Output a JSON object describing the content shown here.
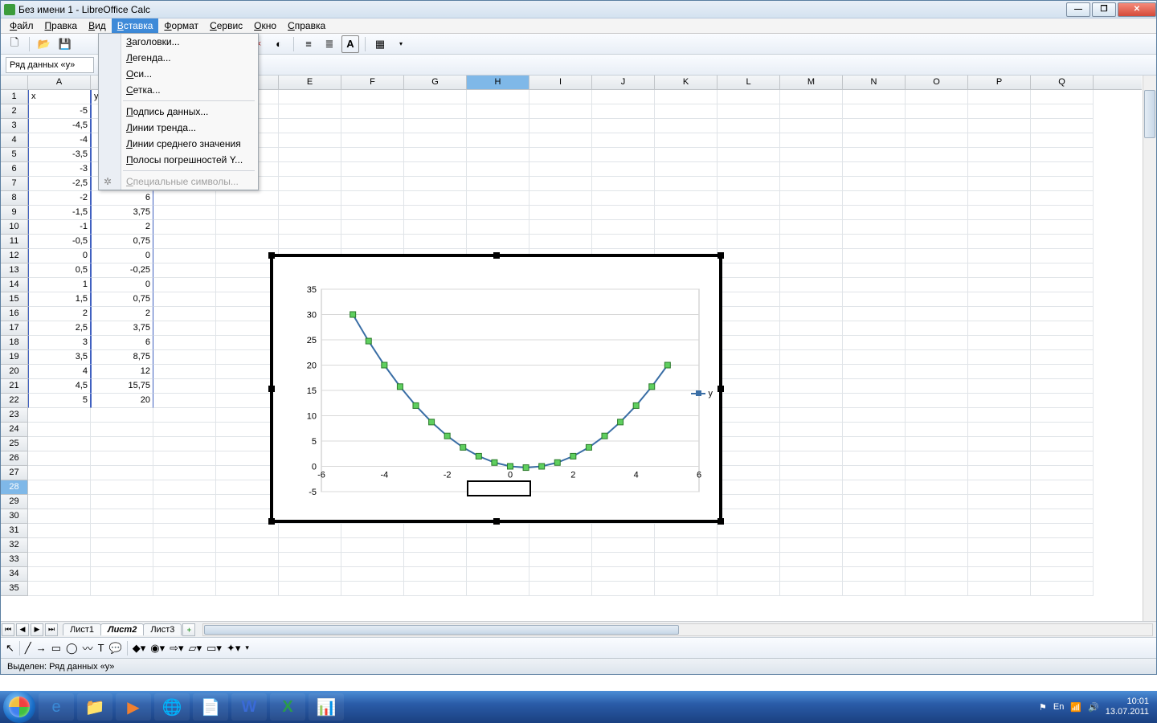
{
  "titlebar": {
    "title": "Без имени 1 - LibreOffice Calc"
  },
  "menubar": {
    "items": [
      "Файл",
      "Правка",
      "Вид",
      "Вставка",
      "Формат",
      "Сервис",
      "Окно",
      "Справка"
    ],
    "activeIndex": 3
  },
  "dropdown": {
    "sections": [
      [
        "Заголовки...",
        "Легенда...",
        "Оси...",
        "Сетка..."
      ],
      [
        "Подпись данных...",
        "Линии тренда...",
        "Линии среднего значения",
        "Полосы погрешностей Y..."
      ],
      [
        {
          "label": "Специальные символы...",
          "disabled": true
        }
      ]
    ]
  },
  "namebox": {
    "value": "Ряд данных «y»"
  },
  "columns": [
    "A",
    "B",
    "C",
    "D",
    "E",
    "F",
    "G",
    "H",
    "I",
    "J",
    "K",
    "L",
    "M",
    "N",
    "O",
    "P",
    "Q"
  ],
  "selectedCol": "H",
  "selectedRow": 28,
  "rowCount": 35,
  "table": {
    "headers": [
      "x",
      "y"
    ],
    "rows": [
      [
        "-5",
        "30"
      ],
      [
        "-4,5",
        ""
      ],
      [
        "-4",
        ""
      ],
      [
        "-3,5",
        ""
      ],
      [
        "-3",
        ""
      ],
      [
        "-2,5",
        "8,75"
      ],
      [
        "-2",
        "6"
      ],
      [
        "-1,5",
        "3,75"
      ],
      [
        "-1",
        "2"
      ],
      [
        "-0,5",
        "0,75"
      ],
      [
        "0",
        "0"
      ],
      [
        "0,5",
        "-0,25"
      ],
      [
        "1",
        "0"
      ],
      [
        "1,5",
        "0,75"
      ],
      [
        "2",
        "2"
      ],
      [
        "2,5",
        "3,75"
      ],
      [
        "3",
        "6"
      ],
      [
        "3,5",
        "8,75"
      ],
      [
        "4",
        "12"
      ],
      [
        "4,5",
        "15,75"
      ],
      [
        "5",
        "20"
      ]
    ]
  },
  "chart": {
    "legend_label": "y",
    "xlim": [
      -6,
      6
    ],
    "ylim": [
      -5,
      35
    ],
    "xticks": [
      -6,
      -4,
      -2,
      0,
      2,
      4,
      6
    ],
    "yticks": [
      -5,
      0,
      5,
      10,
      15,
      20,
      25,
      30,
      35
    ],
    "grid_color": "#d8d8d8",
    "line_color": "#3a6ea5",
    "marker_fill": "#5fcf5f",
    "marker_stroke": "#2a7a2a",
    "marker_size": 7,
    "line_width": 2,
    "points": [
      [
        -5,
        30
      ],
      [
        -4.5,
        24.75
      ],
      [
        -4,
        20
      ],
      [
        -3.5,
        15.75
      ],
      [
        -3,
        12
      ],
      [
        -2.5,
        8.75
      ],
      [
        -2,
        6
      ],
      [
        -1.5,
        3.75
      ],
      [
        -1,
        2
      ],
      [
        -0.5,
        0.75
      ],
      [
        0,
        0
      ],
      [
        0.5,
        -0.25
      ],
      [
        1,
        0
      ],
      [
        1.5,
        0.75
      ],
      [
        2,
        2
      ],
      [
        2.5,
        3.75
      ],
      [
        3,
        6
      ],
      [
        3.5,
        8.75
      ],
      [
        4,
        12
      ],
      [
        4.5,
        15.75
      ],
      [
        5,
        20
      ]
    ]
  },
  "sheets": {
    "tabs": [
      "Лист1",
      "Лист2",
      "Лист3"
    ],
    "activeIndex": 1
  },
  "statusbar": {
    "text": "Выделен: Ряд данных «y»"
  },
  "tray": {
    "lang": "En",
    "time": "10:01",
    "date": "13.07.2011"
  }
}
